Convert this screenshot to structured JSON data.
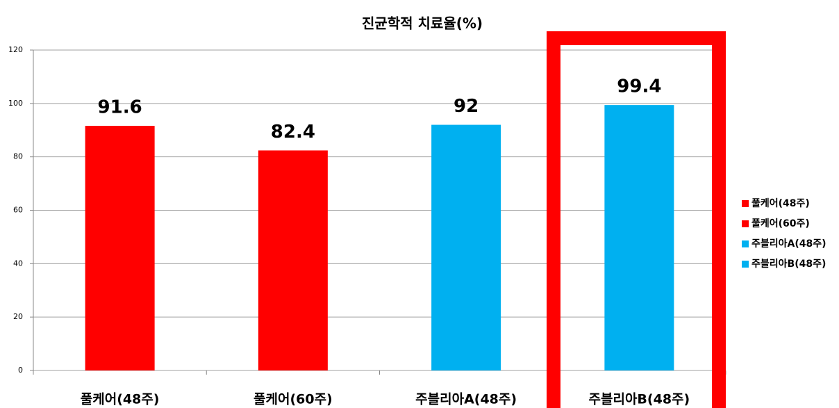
{
  "chart_data": {
    "type": "bar",
    "title": "진균학적 치료율(%)",
    "categories": [
      "풀케어(48주)",
      "풀케어(60주)",
      "주블리아A(48주)",
      "주블리아B(48주)"
    ],
    "series": [
      {
        "name": "풀케어(48주)",
        "color": "#ff0000",
        "values": [
          91.6,
          null,
          null,
          null
        ]
      },
      {
        "name": "풀케어(60주)",
        "color": "#ff0000",
        "values": [
          null,
          82.4,
          null,
          null
        ]
      },
      {
        "name": "주블리아A(48주)",
        "color": "#00b0f0",
        "values": [
          null,
          null,
          92,
          null
        ]
      },
      {
        "name": "주블리아B(48주)",
        "color": "#00b0f0",
        "values": [
          null,
          null,
          null,
          99.4
        ]
      }
    ],
    "ylim": [
      0,
      120
    ],
    "yticks": [
      0,
      20,
      40,
      60,
      80,
      100,
      120
    ],
    "grid": true,
    "legend": "right"
  }
}
